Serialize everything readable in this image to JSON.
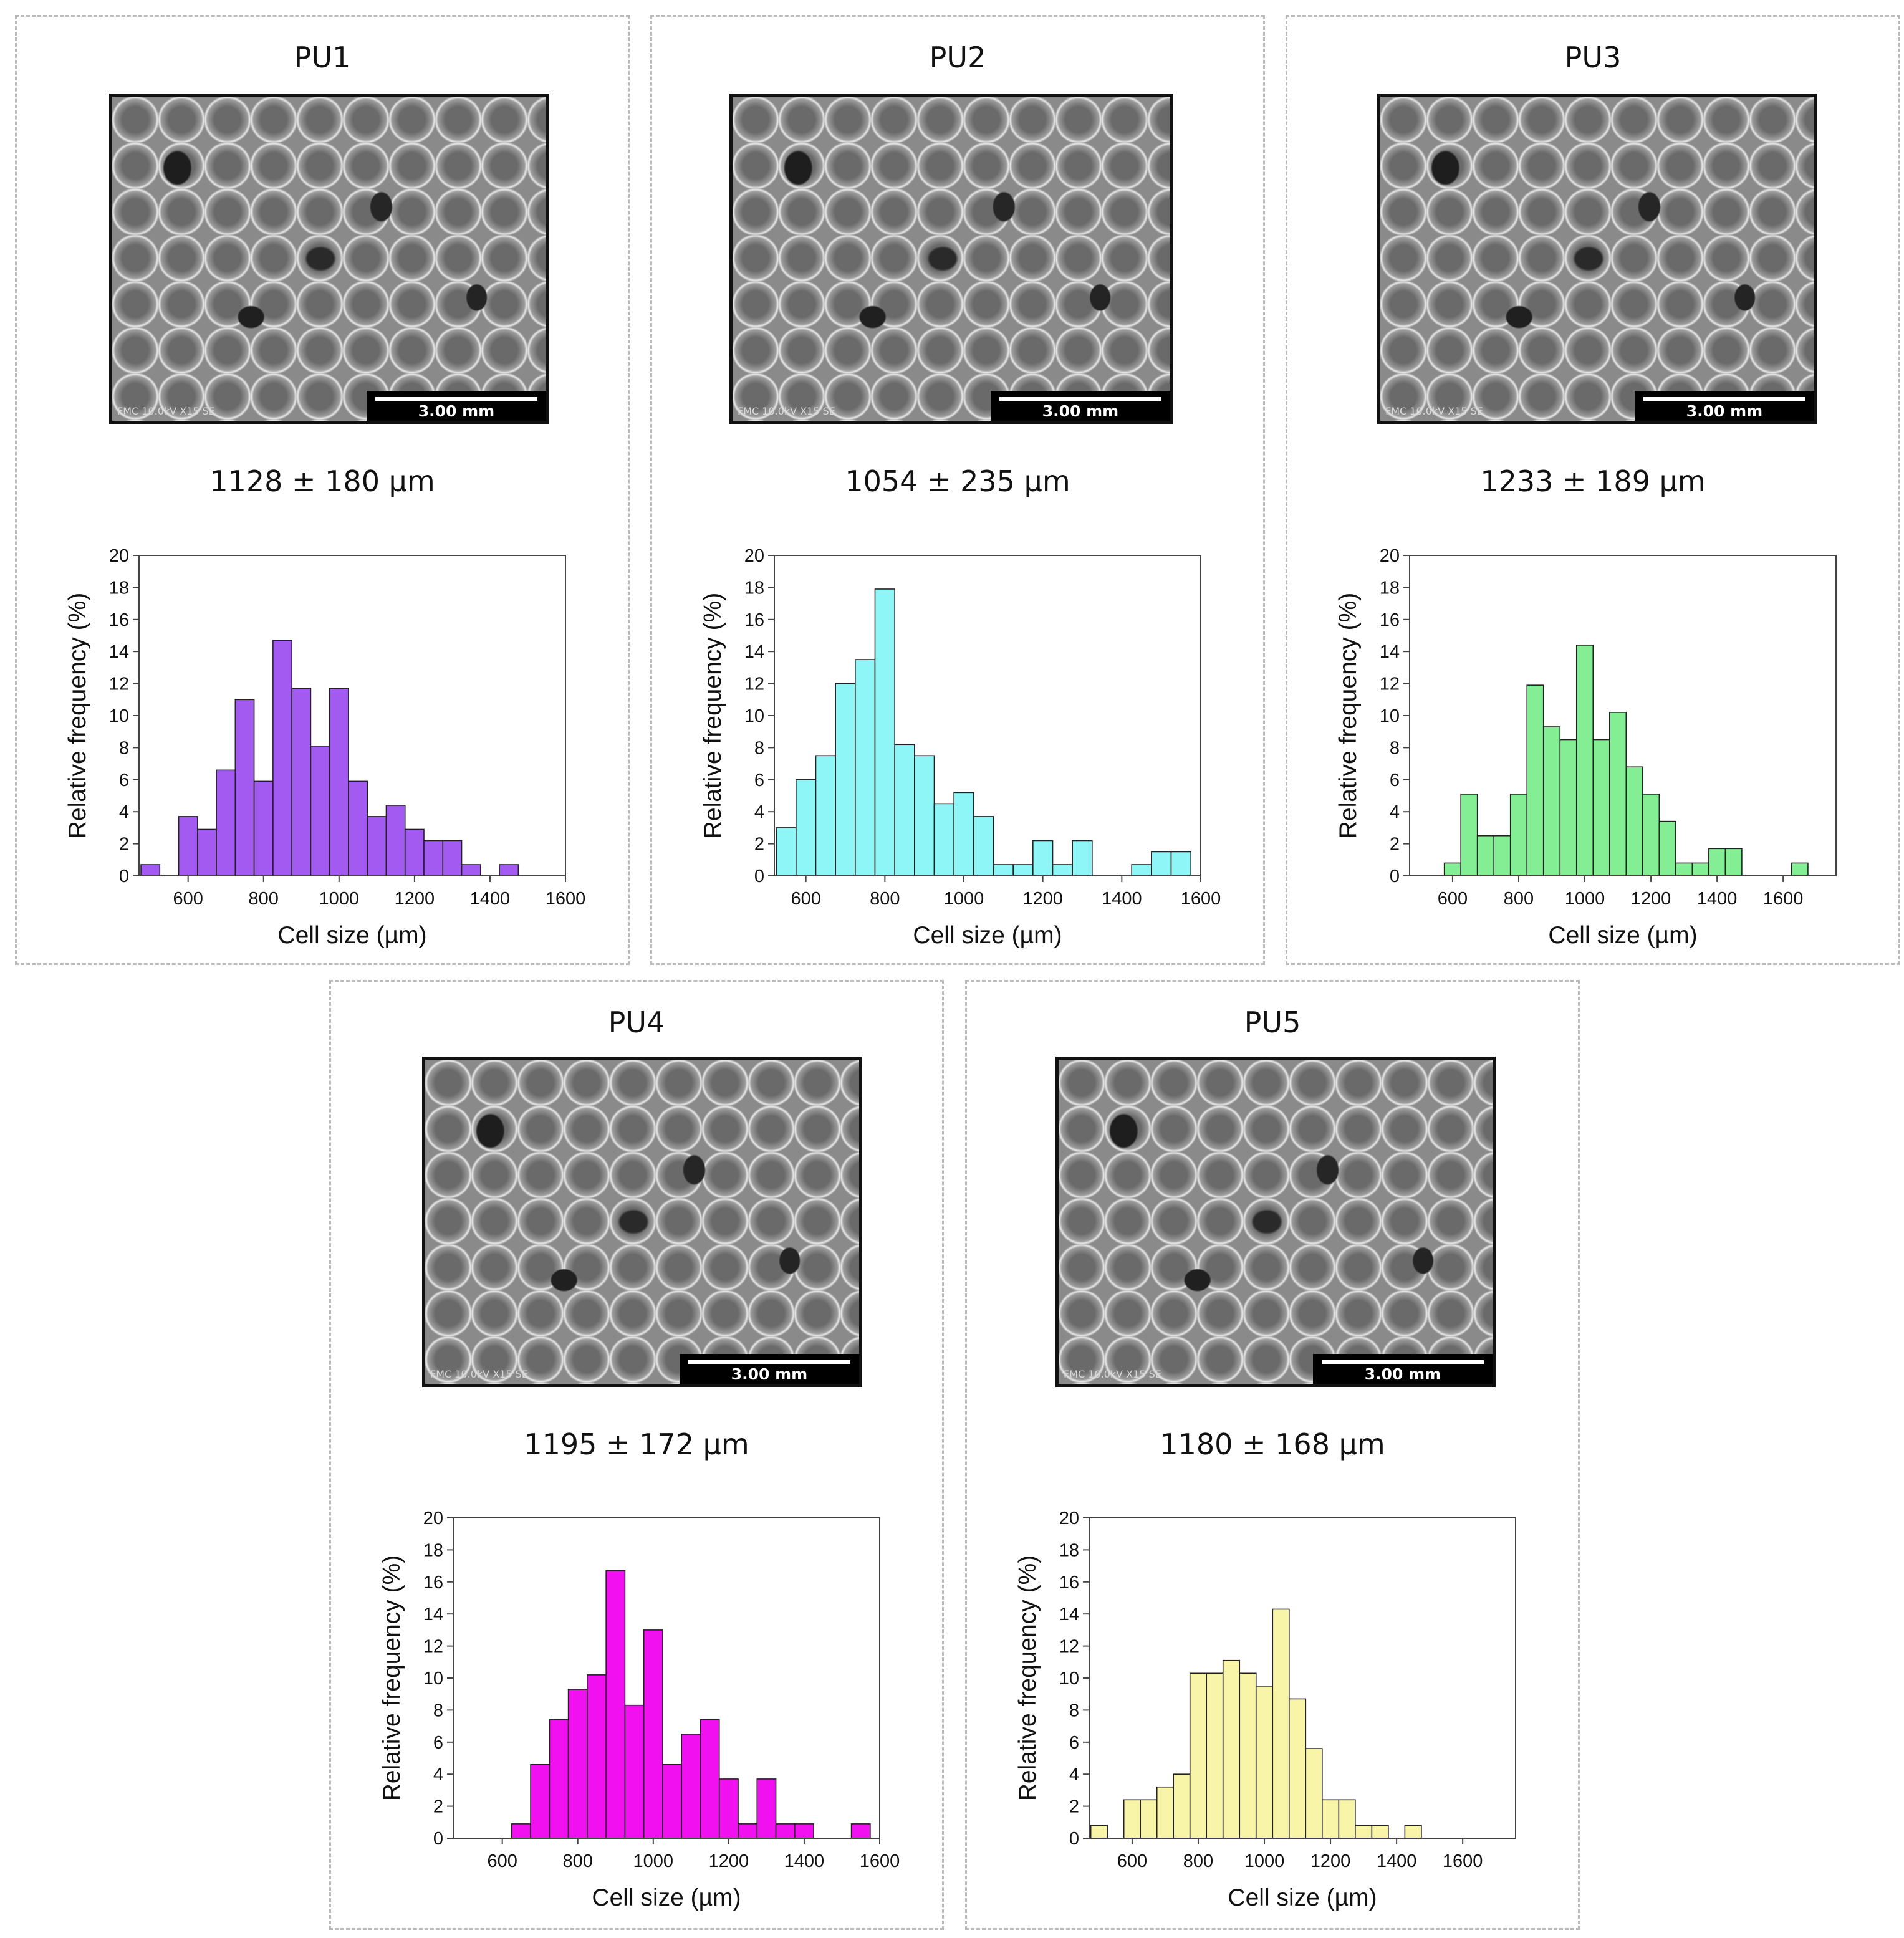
{
  "panels": [
    {
      "title": "PU1",
      "cell_size": "1128 ± 180 µm",
      "sem_scale": "3.00 mm",
      "sem_meta": "FMC 10.0kV X15 SE",
      "color": "#a25af0"
    },
    {
      "title": "PU2",
      "cell_size": "1054 ± 235 µm",
      "sem_scale": "3.00 mm",
      "sem_meta": "FMC 10.0kV X15 SE",
      "color": "#8ef6f6"
    },
    {
      "title": "PU3",
      "cell_size": "1233 ± 189 µm",
      "sem_scale": "3.00 mm",
      "sem_meta": "FMC 10.0kV X15 SE",
      "color": "#84ee94"
    },
    {
      "title": "PU4",
      "cell_size": "1195 ± 172 µm",
      "sem_scale": "3.00 mm",
      "sem_meta": "FMC 10.0kV X15 SE",
      "color": "#f010f0"
    },
    {
      "title": "PU5",
      "cell_size": "1180 ± 168 µm",
      "sem_scale": "3.00 mm",
      "sem_meta": "FMC 10.0kV X15 SE",
      "color": "#f8f4a8"
    }
  ],
  "chart_data": [
    {
      "type": "bar",
      "name": "PU1",
      "title": "",
      "xlabel": "Cell size (µm)",
      "ylabel": "Relative frequency (%)",
      "xlim": [
        470,
        1600
      ],
      "ylim": [
        0,
        20
      ],
      "bin_width": 50,
      "xticks": [
        600,
        800,
        1000,
        1200,
        1400,
        1600
      ],
      "yticks": [
        0,
        2,
        4,
        6,
        8,
        10,
        12,
        14,
        16,
        18,
        20
      ],
      "x": [
        500,
        600,
        650,
        700,
        750,
        800,
        850,
        900,
        950,
        1000,
        1050,
        1100,
        1150,
        1200,
        1250,
        1300,
        1350,
        1450
      ],
      "values": [
        0.7,
        3.7,
        2.9,
        6.6,
        11.0,
        5.9,
        14.7,
        11.7,
        8.1,
        11.7,
        5.9,
        3.7,
        4.4,
        2.9,
        2.2,
        2.2,
        0.7,
        0.7
      ]
    },
    {
      "type": "bar",
      "name": "PU2",
      "title": "",
      "xlabel": "Cell size (µm)",
      "ylabel": "Relative frequency (%)",
      "xlim": [
        520,
        1600
      ],
      "ylim": [
        0,
        20
      ],
      "bin_width": 50,
      "xticks": [
        600,
        800,
        1000,
        1200,
        1400,
        1600
      ],
      "yticks": [
        0,
        2,
        4,
        6,
        8,
        10,
        12,
        14,
        16,
        18,
        20
      ],
      "x": [
        550,
        600,
        650,
        700,
        750,
        800,
        850,
        900,
        950,
        1000,
        1050,
        1100,
        1150,
        1200,
        1250,
        1300,
        1450,
        1500,
        1550
      ],
      "values": [
        3.0,
        6.0,
        7.5,
        12.0,
        13.5,
        17.9,
        8.2,
        7.5,
        4.5,
        5.2,
        3.7,
        0.7,
        0.7,
        2.2,
        0.7,
        2.2,
        0.7,
        1.5,
        1.5
      ]
    },
    {
      "type": "bar",
      "name": "PU3",
      "title": "",
      "xlabel": "Cell size (µm)",
      "ylabel": "Relative frequency (%)",
      "xlim": [
        470,
        1760
      ],
      "ylim": [
        0,
        20
      ],
      "bin_width": 50,
      "xticks": [
        600,
        800,
        1000,
        1200,
        1400,
        1600
      ],
      "yticks": [
        0,
        2,
        4,
        6,
        8,
        10,
        12,
        14,
        16,
        18,
        20
      ],
      "x": [
        600,
        650,
        700,
        750,
        800,
        850,
        900,
        950,
        1000,
        1050,
        1100,
        1150,
        1200,
        1250,
        1300,
        1350,
        1400,
        1450,
        1650
      ],
      "values": [
        0.8,
        5.1,
        2.5,
        2.5,
        5.1,
        11.9,
        9.3,
        8.5,
        14.4,
        8.5,
        10.2,
        6.8,
        5.1,
        3.4,
        0.8,
        0.8,
        1.7,
        1.7,
        0.8
      ]
    },
    {
      "type": "bar",
      "name": "PU4",
      "title": "",
      "xlabel": "Cell size (µm)",
      "ylabel": "Relative frequency (%)",
      "xlim": [
        470,
        1600
      ],
      "ylim": [
        0,
        20
      ],
      "bin_width": 50,
      "xticks": [
        600,
        800,
        1000,
        1200,
        1400,
        1600
      ],
      "yticks": [
        0,
        2,
        4,
        6,
        8,
        10,
        12,
        14,
        16,
        18,
        20
      ],
      "x": [
        650,
        700,
        750,
        800,
        850,
        900,
        950,
        1000,
        1050,
        1100,
        1150,
        1200,
        1250,
        1300,
        1350,
        1400,
        1550
      ],
      "values": [
        0.9,
        4.6,
        7.4,
        9.3,
        10.2,
        16.7,
        8.3,
        13.0,
        4.6,
        6.5,
        7.4,
        3.7,
        0.9,
        3.7,
        0.9,
        0.9,
        0.9
      ]
    },
    {
      "type": "bar",
      "name": "PU5",
      "title": "",
      "xlabel": "Cell size (µm)",
      "ylabel": "Relative frequency (%)",
      "xlim": [
        470,
        1760
      ],
      "ylim": [
        0,
        20
      ],
      "bin_width": 50,
      "xticks": [
        600,
        800,
        1000,
        1200,
        1400,
        1600
      ],
      "yticks": [
        0,
        2,
        4,
        6,
        8,
        10,
        12,
        14,
        16,
        18,
        20
      ],
      "x": [
        500,
        600,
        650,
        700,
        750,
        800,
        850,
        900,
        950,
        1000,
        1050,
        1100,
        1150,
        1200,
        1250,
        1300,
        1350,
        1450
      ],
      "values": [
        0.8,
        2.4,
        2.4,
        3.2,
        4.0,
        10.3,
        10.3,
        11.1,
        10.3,
        9.5,
        14.3,
        8.7,
        5.6,
        2.4,
        2.4,
        0.8,
        0.8,
        0.8
      ]
    }
  ]
}
